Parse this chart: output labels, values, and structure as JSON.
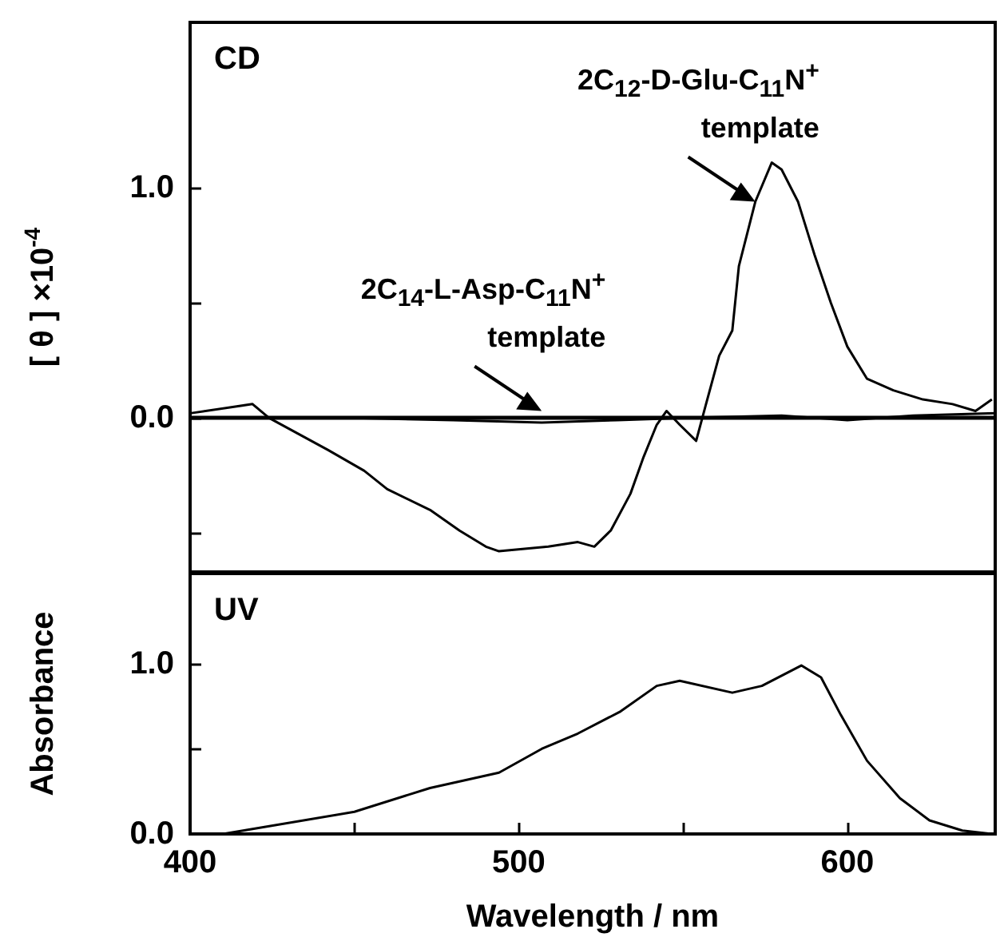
{
  "chart_data": [
    {
      "type": "line",
      "title": "CD",
      "ylabel": "[ θ ] ×10$^{-4}$",
      "xlim": [
        400,
        645
      ],
      "ylim": [
        -0.67,
        1.72
      ],
      "yticks": [
        {
          "value": -0.5,
          "label": null
        },
        {
          "value": 0,
          "label": "0.0"
        },
        {
          "value": 0.5,
          "label": null
        },
        {
          "value": 1,
          "label": "1.0"
        }
      ],
      "tick_labels": "y",
      "grid": false,
      "series": [
        {
          "color": "#000000",
          "x": [
            400,
            419,
            424,
            442,
            453,
            460,
            473,
            482,
            490,
            494,
            509,
            518,
            523,
            528,
            534,
            538,
            542,
            545,
            549,
            554,
            557,
            561,
            565,
            567,
            572,
            577,
            580,
            585,
            590,
            595,
            600,
            606,
            614,
            623,
            632,
            639,
            644
          ],
          "values": [
            0.02,
            0.06,
            0,
            -0.14,
            -0.23,
            -0.31,
            -0.4,
            -0.49,
            -0.56,
            -0.58,
            -0.56,
            -0.54,
            -0.56,
            -0.49,
            -0.33,
            -0.17,
            -0.03,
            0.03,
            -0.03,
            -0.1,
            0.06,
            0.27,
            0.38,
            0.66,
            0.94,
            1.11,
            1.08,
            0.94,
            0.71,
            0.5,
            0.31,
            0.17,
            0.12,
            0.08,
            0.06,
            0.03,
            0.08
          ]
        },
        {
          "color": "#000000",
          "x": [
            400,
            450,
            480,
            507,
            530,
            550,
            580,
            600,
            620,
            645
          ],
          "values": [
            0,
            0,
            -0.01,
            -0.02,
            -0.01,
            0,
            0.01,
            -0.01,
            0.01,
            0.02
          ]
        }
      ],
      "ref_lines": [
        {
          "axis": "y",
          "value": 0,
          "color": "#000000"
        }
      ],
      "annotations": [
        {
          "text": "2C$_{12}$-D-Glu-C$_{11}$N$^{+}$\ntemplate",
          "x": 572,
          "y": 0.94
        },
        {
          "text": "2C$_{14}$-L-Asp-C$_{11}$N$^{+}$\ntemplate",
          "x": 507,
          "y": 0.03
        }
      ]
    },
    {
      "type": "line",
      "title": "UV",
      "xlabel": "Wavelength / nm",
      "ylabel": "Absorbance",
      "xlim": [
        400,
        645
      ],
      "ylim": [
        0,
        1.53
      ],
      "xticks": [
        400,
        {
          "value": 450,
          "label": null
        },
        500,
        {
          "value": 550,
          "label": null
        },
        600
      ],
      "yticks": [
        {
          "value": 0,
          "label": "0.0"
        },
        {
          "value": 0.5,
          "label": null
        },
        {
          "value": 1,
          "label": "1.0"
        }
      ],
      "grid": false,
      "series": [
        {
          "color": "#000000",
          "x": [
            410,
            450,
            473,
            494,
            507,
            518,
            531,
            542,
            549,
            565,
            574,
            586,
            592,
            598,
            606,
            616,
            625,
            635,
            644
          ],
          "values": [
            0,
            0.13,
            0.27,
            0.36,
            0.5,
            0.59,
            0.72,
            0.87,
            0.9,
            0.83,
            0.87,
            0.99,
            0.92,
            0.7,
            0.43,
            0.21,
            0.08,
            0.02,
            0
          ]
        }
      ]
    }
  ]
}
